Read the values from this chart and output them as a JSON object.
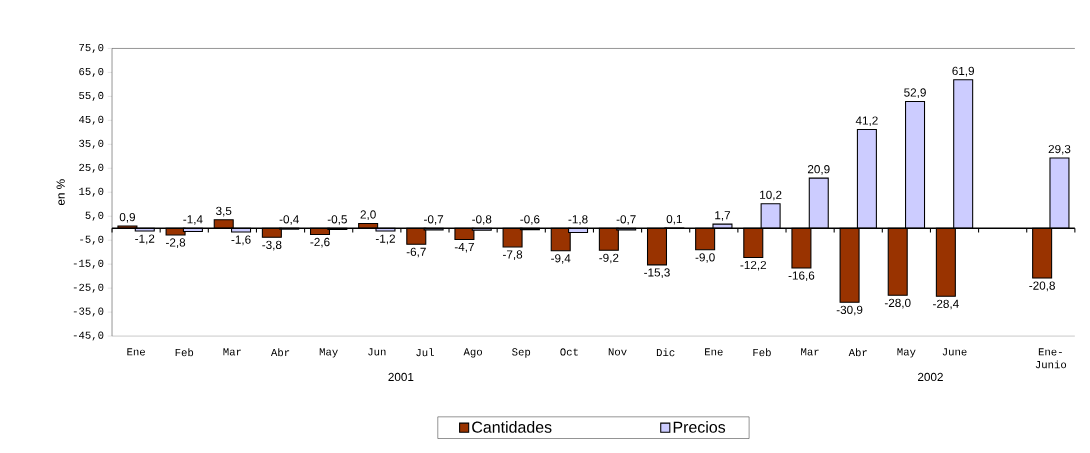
{
  "chart_data": {
    "type": "bar",
    "ylabel": "en %",
    "categories": [
      "Ene",
      "Feb",
      "Mar",
      "Abr",
      "May",
      "Jun",
      "Jul",
      "Ago",
      "Sep",
      "Oct",
      "Nov",
      "Dic",
      "Ene",
      "Feb",
      "Mar",
      "Abr",
      "May",
      "June",
      null,
      "Ene-Junio"
    ],
    "series": [
      {
        "name": "Cantidades",
        "color": "#993300",
        "values": [
          0.9,
          -2.8,
          3.5,
          -3.8,
          -2.6,
          2.0,
          -6.7,
          -4.7,
          -7.8,
          -9.4,
          -9.2,
          -15.3,
          -9.0,
          -12.2,
          -16.6,
          -30.9,
          -28.0,
          -28.4,
          null,
          -20.8
        ],
        "value_labels": [
          "0,9",
          "-2,8",
          "3,5",
          "-3,8",
          "-2,6",
          "2,0",
          "-6,7",
          "-4,7",
          "-7,8",
          "-9,4",
          "-9,2",
          "-15,3",
          "-9,0",
          "-12,2",
          "-16,6",
          "-30,9",
          "-28,0",
          "-28,4",
          null,
          "-20,8"
        ]
      },
      {
        "name": "Precios",
        "color": "#ccccff",
        "values": [
          -1.2,
          -1.4,
          -1.6,
          -0.4,
          -0.5,
          -1.2,
          -0.7,
          -0.8,
          -0.6,
          -1.8,
          -0.7,
          0.1,
          1.7,
          10.2,
          20.9,
          41.2,
          52.9,
          61.9,
          null,
          29.3
        ],
        "value_labels": [
          "-1,2",
          "-1,4",
          "-1,6",
          "-0,4",
          "-0,5",
          "-1,2",
          "-0,7",
          "-0,8",
          "-0,6",
          "-1,8",
          "-0,7",
          "0,1",
          "1,7",
          "10,2",
          "20,9",
          "41,2",
          "52,9",
          "61,9",
          null,
          "29,3"
        ]
      }
    ],
    "ylim": [
      -45,
      75
    ],
    "yticks": [
      {
        "value": -45,
        "label": "-45,0"
      },
      {
        "value": -35,
        "label": "-35,0"
      },
      {
        "value": -25,
        "label": "-25,0"
      },
      {
        "value": -15,
        "label": "-15,0"
      },
      {
        "value": -5,
        "label": "-5,0"
      },
      {
        "value": 5,
        "label": "5,0"
      },
      {
        "value": 15,
        "label": "15,0"
      },
      {
        "value": 25,
        "label": "25,0"
      },
      {
        "value": 35,
        "label": "35,0"
      },
      {
        "value": 45,
        "label": "45,0"
      },
      {
        "value": 55,
        "label": "55,0"
      },
      {
        "value": 65,
        "label": "65,0"
      },
      {
        "value": 75,
        "label": "75,0"
      }
    ],
    "annotations": [
      "2001",
      "2002"
    ],
    "legend": "bottom",
    "grid": false
  }
}
